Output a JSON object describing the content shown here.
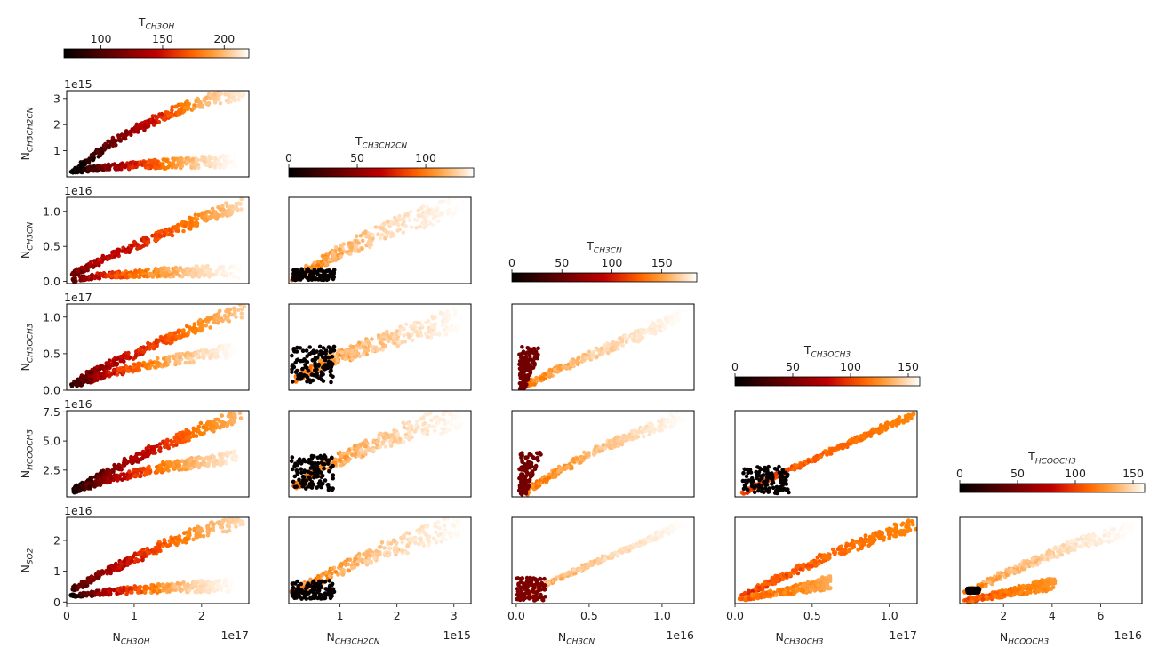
{
  "labels": {
    "N_CH3OH": "N<sub>CH3OH</sub>",
    "N_CH3CH2CN": "N<sub>CH3CH2CN</sub>",
    "N_CH3CN": "N<sub>CH3CN</sub>",
    "N_CH3OCH3": "N<sub>CH3OCH3</sub>",
    "N_HCOOCH3": "N<sub>HCOOCH3</sub>",
    "N_SO2": "N<sub>SO2</sub>"
  },
  "colorbars": [
    {
      "label": "T<sub>CH3OH</sub>",
      "ticks": [
        100,
        150,
        200
      ],
      "range": [
        70,
        220
      ]
    },
    {
      "label": "T<sub>CH3CH2CN</sub>",
      "ticks": [
        0,
        50,
        100
      ],
      "range": [
        0,
        135
      ]
    },
    {
      "label": "T<sub>CH3CN</sub>",
      "ticks": [
        0,
        50,
        100,
        150
      ],
      "range": [
        0,
        185
      ]
    },
    {
      "label": "T<sub>CH3OCH3</sub>",
      "ticks": [
        0,
        50,
        100,
        150
      ],
      "range": [
        0,
        160
      ]
    },
    {
      "label": "T<sub>HCOOCH3</sub>",
      "ticks": [
        0,
        50,
        100,
        150
      ],
      "range": [
        0,
        160
      ]
    }
  ],
  "chart_data": [
    {
      "type": "scatter",
      "col": 0,
      "row": 0,
      "xlabel": "",
      "ylabel": "N<sub>CH3CH2CN</sub>",
      "xlim": [
        0,
        2.7
      ],
      "ylim": [
        0,
        3.3
      ],
      "xticks": [],
      "yticks": [
        1,
        2,
        3
      ],
      "yoffset": "1e15",
      "xoffset": "",
      "pattern": "fan",
      "series": [
        {
          "x": [
            0.1,
            0.5,
            1.0,
            1.5,
            2.0,
            2.6
          ],
          "y": [
            0.2,
            1.0,
            1.8,
            2.4,
            2.9,
            3.2
          ],
          "T": [
            70,
            110,
            140,
            170,
            200,
            215
          ]
        },
        {
          "x": [
            0.1,
            0.5,
            1.0,
            1.5,
            2.0,
            2.5
          ],
          "y": [
            0.2,
            0.35,
            0.45,
            0.5,
            0.55,
            0.6
          ],
          "T": [
            80,
            120,
            160,
            190,
            210,
            220
          ]
        }
      ]
    },
    {
      "type": "scatter",
      "col": 0,
      "row": 1,
      "xlabel": "",
      "ylabel": "N<sub>CH3CN</sub>",
      "xlim": [
        0,
        2.7
      ],
      "ylim": [
        -0.03,
        1.2
      ],
      "xticks": [],
      "yticks": [
        0.0,
        0.5,
        1.0
      ],
      "yoffset": "1e16",
      "xoffset": "",
      "pattern": "fan",
      "series": [
        {
          "x": [
            0.1,
            0.5,
            1.0,
            1.5,
            2.0,
            2.6
          ],
          "y": [
            0.1,
            0.3,
            0.5,
            0.7,
            0.9,
            1.1
          ],
          "T": [
            130,
            150,
            160,
            175,
            190,
            210
          ]
        },
        {
          "x": [
            0.1,
            0.5,
            1.0,
            1.5,
            2.0,
            2.6
          ],
          "y": [
            0.02,
            0.08,
            0.11,
            0.13,
            0.14,
            0.15
          ],
          "T": [
            120,
            160,
            185,
            200,
            212,
            220
          ]
        }
      ]
    },
    {
      "type": "scatter",
      "col": 0,
      "row": 2,
      "xlabel": "",
      "ylabel": "N<sub>CH3OCH3</sub>",
      "xlim": [
        0,
        2.7
      ],
      "ylim": [
        0,
        1.18
      ],
      "xticks": [],
      "yticks": [
        0.0,
        0.5,
        1.0
      ],
      "yoffset": "1e17",
      "xoffset": "",
      "pattern": "fan",
      "series": [
        {
          "x": [
            0.1,
            0.5,
            1.0,
            1.5,
            2.0,
            2.6
          ],
          "y": [
            0.1,
            0.3,
            0.5,
            0.7,
            0.9,
            1.1
          ],
          "T": [
            110,
            140,
            160,
            175,
            190,
            205
          ]
        },
        {
          "x": [
            0.1,
            0.5,
            1.0,
            1.5,
            2.0,
            2.5
          ],
          "y": [
            0.06,
            0.2,
            0.3,
            0.4,
            0.48,
            0.55
          ],
          "T": [
            100,
            150,
            180,
            200,
            212,
            220
          ]
        }
      ]
    },
    {
      "type": "scatter",
      "col": 0,
      "row": 3,
      "xlabel": "",
      "ylabel": "N<sub>HCOOCH3</sub>",
      "xlim": [
        0,
        2.7
      ],
      "ylim": [
        0.2,
        7.6
      ],
      "xticks": [],
      "yticks": [
        2.5,
        5.0,
        7.5
      ],
      "yoffset": "1e16",
      "xoffset": "",
      "pattern": "fan",
      "series": [
        {
          "x": [
            0.1,
            0.5,
            1.0,
            1.5,
            2.0,
            2.6
          ],
          "y": [
            0.8,
            2.0,
            3.5,
            4.8,
            6.0,
            7.2
          ],
          "T": [
            90,
            120,
            145,
            165,
            185,
            200
          ]
        },
        {
          "x": [
            0.1,
            0.5,
            1.0,
            1.5,
            2.0,
            2.5
          ],
          "y": [
            0.6,
            1.5,
            2.2,
            2.8,
            3.2,
            3.6
          ],
          "T": [
            85,
            130,
            165,
            190,
            205,
            215
          ]
        }
      ]
    },
    {
      "type": "scatter",
      "col": 0,
      "row": 4,
      "xlabel": "N<sub>CH3OH</sub>",
      "ylabel": "N<sub>SO2</sub>",
      "xlim": [
        0,
        2.7
      ],
      "ylim": [
        -0.05,
        2.75
      ],
      "xticks": [
        0,
        1,
        2
      ],
      "yticks": [
        0,
        1,
        2
      ],
      "yoffset": "1e16",
      "xoffset": "1e17",
      "pattern": "fan",
      "series": [
        {
          "x": [
            0.1,
            0.5,
            1.0,
            1.5,
            2.0,
            2.6
          ],
          "y": [
            0.4,
            0.9,
            1.4,
            1.9,
            2.3,
            2.6
          ],
          "T": [
            110,
            140,
            160,
            180,
            195,
            210
          ]
        },
        {
          "x": [
            0.1,
            0.5,
            1.0,
            1.5,
            2.0,
            2.5
          ],
          "y": [
            0.2,
            0.3,
            0.4,
            0.45,
            0.5,
            0.55
          ],
          "T": [
            90,
            140,
            175,
            200,
            212,
            220
          ]
        }
      ]
    },
    {
      "type": "scatter",
      "col": 1,
      "row": 1,
      "xlabel": "",
      "ylabel": "",
      "xlim": [
        0.1,
        3.3
      ],
      "ylim": [
        -0.03,
        1.2
      ],
      "xticks": [],
      "yticks": [],
      "yoffset": "",
      "xoffset": "",
      "pattern": "plume",
      "series": [
        {
          "x": [
            0.2,
            0.6,
            1.2,
            2.0,
            3.2
          ],
          "y": [
            0.05,
            0.25,
            0.5,
            0.8,
            1.1
          ],
          "T": [
            110,
            118,
            125,
            130,
            135
          ]
        }
      ],
      "blob": {
        "x": [
          0.15,
          0.9
        ],
        "y": [
          0.02,
          0.18
        ],
        "T": 2
      }
    },
    {
      "type": "scatter",
      "col": 1,
      "row": 2,
      "xlabel": "",
      "ylabel": "",
      "xlim": [
        0.1,
        3.3
      ],
      "ylim": [
        0,
        1.18
      ],
      "xticks": [],
      "yticks": [],
      "yoffset": "",
      "xoffset": "",
      "pattern": "plume",
      "series": [
        {
          "x": [
            0.2,
            0.8,
            1.5,
            2.3,
            3.2
          ],
          "y": [
            0.15,
            0.4,
            0.6,
            0.8,
            1.0
          ],
          "T": [
            110,
            118,
            125,
            130,
            135
          ]
        }
      ],
      "blob": {
        "x": [
          0.15,
          0.9
        ],
        "y": [
          0.1,
          0.6
        ],
        "T": 2
      }
    },
    {
      "type": "scatter",
      "col": 1,
      "row": 3,
      "xlabel": "",
      "ylabel": "",
      "xlim": [
        0.1,
        3.3
      ],
      "ylim": [
        0.2,
        7.6
      ],
      "xticks": [],
      "yticks": [],
      "yoffset": "",
      "xoffset": "",
      "pattern": "plume",
      "series": [
        {
          "x": [
            0.2,
            0.8,
            1.5,
            2.3,
            3.2
          ],
          "y": [
            1.0,
            3.0,
            4.5,
            6.0,
            7.2
          ],
          "T": [
            110,
            118,
            125,
            130,
            135
          ]
        }
      ],
      "blob": {
        "x": [
          0.15,
          0.9
        ],
        "y": [
          0.8,
          3.8
        ],
        "T": 2
      }
    },
    {
      "type": "scatter",
      "col": 1,
      "row": 4,
      "xlabel": "N<sub>CH3CH2CN</sub>",
      "ylabel": "",
      "xlim": [
        0.1,
        3.3
      ],
      "ylim": [
        -0.05,
        2.75
      ],
      "xticks": [
        1,
        2,
        3
      ],
      "yticks": [],
      "yoffset": "",
      "xoffset": "1e15",
      "pattern": "plume",
      "series": [
        {
          "x": [
            0.2,
            0.8,
            1.5,
            2.3,
            3.2
          ],
          "y": [
            0.3,
            0.9,
            1.5,
            2.0,
            2.6
          ],
          "T": [
            110,
            118,
            125,
            130,
            135
          ]
        }
      ],
      "blob": {
        "x": [
          0.15,
          0.9
        ],
        "y": [
          0.1,
          0.7
        ],
        "T": 2
      }
    },
    {
      "type": "scatter",
      "col": 2,
      "row": 2,
      "xlabel": "",
      "ylabel": "",
      "xlim": [
        -0.03,
        1.22
      ],
      "ylim": [
        0,
        1.18
      ],
      "xticks": [],
      "yticks": [],
      "yoffset": "",
      "xoffset": "",
      "pattern": "ellipse",
      "series": [
        {
          "x": [
            0.05,
            0.3,
            0.6,
            0.9,
            1.15
          ],
          "y": [
            0.05,
            0.3,
            0.55,
            0.8,
            1.05
          ],
          "T": [
            150,
            165,
            175,
            180,
            185
          ]
        }
      ],
      "spike": {
        "x": [
          0.02,
          0.18
        ],
        "y": [
          0.02,
          0.6
        ],
        "T": 55
      }
    },
    {
      "type": "scatter",
      "col": 2,
      "row": 3,
      "xlabel": "",
      "ylabel": "",
      "xlim": [
        -0.03,
        1.22
      ],
      "ylim": [
        0.2,
        7.6
      ],
      "xticks": [],
      "yticks": [],
      "yoffset": "",
      "xoffset": "",
      "pattern": "ellipse",
      "series": [
        {
          "x": [
            0.05,
            0.3,
            0.6,
            0.9,
            1.15
          ],
          "y": [
            0.5,
            2.5,
            4.5,
            6.0,
            7.2
          ],
          "T": [
            145,
            160,
            170,
            178,
            185
          ]
        }
      ],
      "spike": {
        "x": [
          0.02,
          0.18
        ],
        "y": [
          0.4,
          4.0
        ],
        "T": 55
      }
    },
    {
      "type": "scatter",
      "col": 2,
      "row": 4,
      "xlabel": "N<sub>CH3CN</sub>",
      "ylabel": "",
      "xlim": [
        -0.03,
        1.22
      ],
      "ylim": [
        -0.05,
        2.75
      ],
      "xticks": [
        0.0,
        0.5,
        1.0
      ],
      "yticks": [],
      "yoffset": "",
      "xoffset": "1e16",
      "pattern": "narrow",
      "series": [
        {
          "x": [
            0.05,
            0.3,
            0.6,
            0.9,
            1.15
          ],
          "y": [
            0.2,
            0.8,
            1.4,
            2.0,
            2.6
          ],
          "T": [
            160,
            170,
            175,
            180,
            185
          ]
        }
      ],
      "blob": {
        "x": [
          0.0,
          0.2
        ],
        "y": [
          0.05,
          0.8
        ],
        "T": 60
      }
    },
    {
      "type": "scatter",
      "col": 3,
      "row": 3,
      "xlabel": "",
      "ylabel": "",
      "xlim": [
        0,
        1.18
      ],
      "ylim": [
        0.2,
        7.6
      ],
      "xticks": [],
      "yticks": [],
      "yoffset": "",
      "xoffset": "",
      "pattern": "narrow",
      "series": [
        {
          "x": [
            0.05,
            0.3,
            0.6,
            0.9,
            1.15
          ],
          "y": [
            0.5,
            2.2,
            4.0,
            5.8,
            7.2
          ],
          "T": [
            110,
            115,
            118,
            120,
            122
          ]
        }
      ],
      "blob": {
        "x": [
          0.05,
          0.35
        ],
        "y": [
          0.5,
          2.8
        ],
        "T": 3
      }
    },
    {
      "type": "scatter",
      "col": 3,
      "row": 4,
      "xlabel": "N<sub>CH3OCH3</sub>",
      "ylabel": "",
      "xlim": [
        0,
        1.18
      ],
      "ylim": [
        -0.05,
        2.75
      ],
      "xticks": [
        0.0,
        0.5,
        1.0
      ],
      "yticks": [],
      "yoffset": "",
      "xoffset": "1e17",
      "pattern": "fan",
      "series": [
        {
          "x": [
            0.05,
            0.3,
            0.6,
            0.9,
            1.15
          ],
          "y": [
            0.2,
            0.8,
            1.5,
            2.1,
            2.5
          ],
          "T": [
            112,
            115,
            118,
            120,
            122
          ]
        },
        {
          "x": [
            0.05,
            0.2,
            0.4,
            0.55,
            0.6
          ],
          "y": [
            0.1,
            0.25,
            0.4,
            0.55,
            0.65
          ],
          "T": [
            125,
            128,
            130,
            132,
            134
          ]
        }
      ]
    },
    {
      "type": "scatter",
      "col": 4,
      "row": 4,
      "xlabel": "N<sub>HCOOCH3</sub>",
      "ylabel": "",
      "xlim": [
        0.2,
        7.7
      ],
      "ylim": [
        -0.05,
        2.75
      ],
      "xticks": [
        2,
        4,
        6
      ],
      "yticks": [],
      "yoffset": "",
      "xoffset": "1e16",
      "pattern": "fan",
      "series": [
        {
          "x": [
            0.5,
            2.0,
            3.5,
            5.0,
            7.4
          ],
          "y": [
            0.3,
            0.9,
            1.4,
            1.9,
            2.4
          ],
          "T": [
            135,
            145,
            150,
            155,
            160
          ]
        },
        {
          "x": [
            0.5,
            1.5,
            2.5,
            3.5,
            4.0
          ],
          "y": [
            0.05,
            0.2,
            0.35,
            0.5,
            0.6
          ],
          "T": [
            120,
            122,
            124,
            126,
            128
          ]
        }
      ],
      "blob": {
        "x": [
          0.5,
          1.0
        ],
        "y": [
          0.3,
          0.45
        ],
        "T": 2
      }
    }
  ]
}
